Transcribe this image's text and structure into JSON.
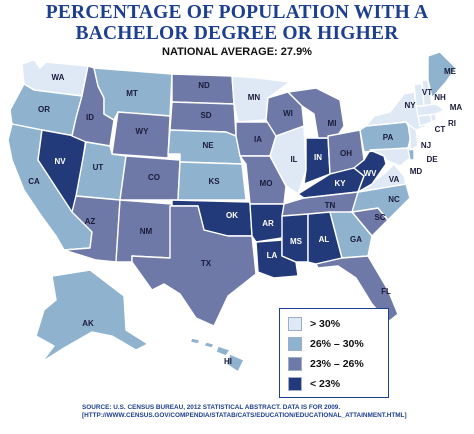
{
  "title_line1": "PERCENTAGE OF POPULATION WITH A",
  "title_line2": "BACHELOR DEGREE OR HIGHER",
  "subtitle": "NATIONAL AVERAGE: 27.9%",
  "colors": {
    "over_30": "#dfe9f5",
    "26_30": "#8fb3cf",
    "23_26": "#6f79a8",
    "under_23": "#233a7a",
    "title": "#1d3f8f"
  },
  "legend": [
    {
      "label": "> 30%",
      "bin": "over_30"
    },
    {
      "label": "26% – 30%",
      "bin": "26_30"
    },
    {
      "label": "23% – 26%",
      "bin": "23_26"
    },
    {
      "label": "< 23%",
      "bin": "under_23"
    }
  ],
  "states": {
    "WA": "over_30",
    "OR": "26_30",
    "CA": "26_30",
    "NV": "under_23",
    "ID": "23_26",
    "MT": "26_30",
    "WY": "23_26",
    "UT": "26_30",
    "AZ": "23_26",
    "CO": "23_26",
    "NM": "23_26",
    "ND": "23_26",
    "SD": "23_26",
    "NE": "26_30",
    "KS": "26_30",
    "OK": "under_23",
    "TX": "23_26",
    "MN": "over_30",
    "IA": "23_26",
    "MO": "23_26",
    "AR": "under_23",
    "LA": "under_23",
    "WI": "23_26",
    "IL": "over_30",
    "IN": "under_23",
    "MI": "23_26",
    "OH": "23_26",
    "KY": "under_23",
    "TN": "23_26",
    "MS": "under_23",
    "AL": "under_23",
    "GA": "26_30",
    "FL": "23_26",
    "SC": "23_26",
    "NC": "26_30",
    "VA": "over_30",
    "WV": "under_23",
    "PA": "26_30",
    "NY": "over_30",
    "VT": "over_30",
    "NH": "over_30",
    "ME": "26_30",
    "MA": "over_30",
    "RI": "over_30",
    "CT": "over_30",
    "NJ": "over_30",
    "DE": "26_30",
    "MD": "over_30",
    "AK": "26_30",
    "HI": "26_30"
  },
  "source_line1": "SOURCE: U.S. CENSUS BUREAU, 2012 STATISTICAL ABSTRACT. DATA IS FOR 2009.",
  "source_line2": "[HTTP://WWW.CENSUS.GOV/COMPENDIA/STATAB/CATS/EDUCATION/EDUCATIONAL_ATTAINMENT.HTML]"
}
